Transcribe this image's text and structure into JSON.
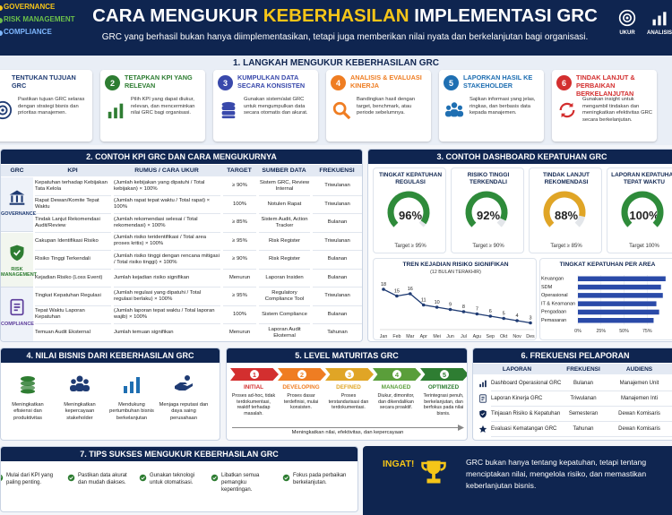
{
  "header": {
    "legend": [
      "GOVERNANCE",
      "RISK MANAGEMENT",
      "COMPLIANCE"
    ],
    "title": [
      "CARA MENGUKUR ",
      "KEBERHASILAN",
      " IMPLEMENTASI GRC"
    ],
    "subtitle": "GRC yang berhasil bukan hanya diimplementasikan, tetapi juga memberikan nilai nyata dan berkelanjutan bagi organisasi.",
    "icons": [
      "UKUR",
      "ANALISIS"
    ]
  },
  "steps": {
    "title": "1. LANGKAH MENGUKUR KEBERHASILAN GRC",
    "items": [
      {
        "title": "TENTUKAN TUJUAN GRC",
        "desc": "Pastikan tujuan GRC selaras dengan strategi bisnis dan prioritas manajemen."
      },
      {
        "number": 2,
        "title": "TETAPKAN KPI YANG RELEVAN",
        "desc": "Pilih KPI yang dapat diukur, relevan, dan mencerminkan nilai GRC bagi organisasi."
      },
      {
        "number": 3,
        "title": "KUMPULKAN DATA SECARA KONSISTEN",
        "desc": "Gunakan sistem/alat GRC untuk mengumpulkan data secara otomatis dan akurat."
      },
      {
        "number": 4,
        "title": "ANALISIS & EVALUASI KINERJA",
        "desc": "Bandingkan hasil dengan target, benchmark, atau periode sebelumnya."
      },
      {
        "number": 5,
        "title": "LAPORKAN HASIL KE STAKEHOLDER",
        "desc": "Sajikan informasi yang jelas, ringkas, dan berbasis data kepada manajemen."
      },
      {
        "number": 6,
        "title": "TINDAK LANJUT & PERBAIKAN BERKELANJUTAN",
        "desc": "Gunakan insight untuk mengambil tindakan dan meningkatkan efektivitas GRC secara berkelanjutan."
      }
    ]
  },
  "kpi_table": {
    "title": "2. CONTOH KPI GRC DAN CARA MENGUKURNYA",
    "columns": [
      "GRC",
      "KPI",
      "RUMUS / CARA UKUR",
      "TARGET",
      "SUMBER DATA",
      "FREKUENSI"
    ],
    "groups": [
      "GOVERNANCE",
      "RISK MANAGEMENT",
      "COMPLIANCE"
    ],
    "rows": [
      [
        "Kepatuhan terhadap Kebijakan Tata Kelola",
        "(Jumlah kebijakan yang dipatuhi / Total kebijakan) × 100%",
        "≥ 90%",
        "Sistem GRC, Review Internal",
        "Triwulanan"
      ],
      [
        "Rapat Dewan/Komite Tepat Waktu",
        "(Jumlah rapat tepat waktu / Total rapat) × 100%",
        "100%",
        "Notulen Rapat",
        "Triwulanan"
      ],
      [
        "Tindak Lanjut Rekomendasi Audit/Review",
        "(Jumlah rekomendasi selesai / Total rekomendasi) × 100%",
        "≥ 85%",
        "Sistem Audit, Action Tracker",
        "Bulanan"
      ],
      [
        "Cakupan Identifikasi Risiko",
        "(Jumlah risiko teridentifikasi / Total area proses kritis) × 100%",
        "≥ 95%",
        "Risk Register",
        "Triwulanan"
      ],
      [
        "Risiko Tinggi Terkendali",
        "(Jumlah risiko tinggi dengan rencana mitigasi / Total risiko tinggi) × 100%",
        "≥ 90%",
        "Risk Register",
        "Bulanan"
      ],
      [
        "Kejadian Risiko (Loss Event)",
        "Jumlah kejadian risiko signifikan",
        "Menurun",
        "Laporan Insiden",
        "Bulanan"
      ],
      [
        "Tingkat Kepatuhan Regulasi",
        "(Jumlah regulasi yang dipatuhi / Total regulasi berlaku) × 100%",
        "≥ 95%",
        "Regulatory Compliance Tool",
        "Triwulanan"
      ],
      [
        "Tepat Waktu Laporan Kepatuhan",
        "(Jumlah laporan tepat waktu / Total laporan wajib) × 100%",
        "100%",
        "Sistem Compliance",
        "Bulanan"
      ],
      [
        "Temuan Audit Eksternal",
        "Jumlah temuan signifikan",
        "Menurun",
        "Laporan Audit Eksternal",
        "Tahunan"
      ]
    ]
  },
  "dashboard": {
    "title": "3. CONTOH DASHBOARD KEPATUHAN GRC"
  },
  "chart_data": [
    {
      "type": "gauge",
      "categories": [
        "TINGKAT KEPATUHAN REGULASI",
        "RISIKO TINGGI TERKENDALI",
        "TINDAK LANJUT REKOMENDASI",
        "LAPORAN KEPATUHAN TEPAT WAKTU"
      ],
      "values": [
        96,
        92,
        88,
        100
      ],
      "value_labels": [
        "96%",
        "92%",
        "88%",
        "100%"
      ],
      "targets": [
        "Target ≥ 95%",
        "Target ≥ 90%",
        "Target ≥ 85%",
        "Target 100%"
      ],
      "colors": [
        "#2e8b3a",
        "#2e8b3a",
        "#e0a526",
        "#2e8b3a"
      ],
      "ylim": [
        0,
        100
      ]
    },
    {
      "type": "line",
      "title": "TREN KEJADIAN RISIKO SIGNIFIKAN",
      "subtitle": "(12 BULAN TERAKHIR)",
      "categories": [
        "Jan",
        "Feb",
        "Mar",
        "Apr",
        "Mei",
        "Jun",
        "Jul",
        "Agu",
        "Sep",
        "Okt",
        "Nov",
        "Des"
      ],
      "values": [
        18,
        15,
        16,
        11,
        10,
        9,
        8,
        7,
        6,
        5,
        4,
        3
      ],
      "color": "#1f3b73",
      "ylim": [
        0,
        20
      ]
    },
    {
      "type": "bar",
      "orientation": "horizontal",
      "title": "TINGKAT KEPATUHAN PER AREA",
      "categories": [
        "Keuangan",
        "SDM",
        "Operasional",
        "IT & Keamanan",
        "Pengadaan",
        "Pemasaran"
      ],
      "values": [
        95,
        90,
        92,
        85,
        88,
        82
      ],
      "color": "#2a4aa8",
      "xlim": [
        0,
        100
      ],
      "xticks": [
        {
          "value": 0,
          "label": "0%"
        },
        {
          "value": 25,
          "label": "25%"
        },
        {
          "value": 50,
          "label": "50%"
        },
        {
          "value": 75,
          "label": "75%"
        }
      ],
      "grid": true
    }
  ],
  "value": {
    "title": "4. NILAI BISNIS DARI KEBERHASILAN GRC",
    "items": [
      "Meningkatkan efisiensi dan produktivitas",
      "Meningkatkan kepercayaan stakeholder",
      "Mendukung pertumbuhan bisnis berkelanjutan",
      "Menjaga reputasi dan daya saing perusahaan"
    ]
  },
  "maturity": {
    "title": "5. LEVEL MATURITAS GRC",
    "levels": [
      {
        "number": 1,
        "name": "INITIAL",
        "desc": "Proses ad-hoc, tidak terdokumentasi, reaktif terhadap masalah."
      },
      {
        "number": 2,
        "name": "DEVELOPING",
        "desc": "Proses dasar terdefinisi, mulai konsisten."
      },
      {
        "number": 3,
        "name": "DEFINED",
        "desc": "Proses terstandarisasi dan terdokumentasi."
      },
      {
        "number": 4,
        "name": "MANAGED",
        "desc": "Diukur, dimonitor, dan dikendalikan secara proaktif."
      },
      {
        "number": 5,
        "name": "OPTIMIZED",
        "desc": "Terintegrasi penuh, berkelanjutan, dan berfokus pada nilai bisnis."
      }
    ],
    "footer": "Meningkatkan nilai, efektivitas, dan kepercayaan"
  },
  "reporting": {
    "title": "6. FREKUENSI PELAPORAN",
    "columns": [
      "LAPORAN",
      "FREKUENSI",
      "AUDIENS"
    ],
    "rows": [
      [
        "Dashboard Operasional GRC",
        "Bulanan",
        "Manajemen Unit"
      ],
      [
        "Laporan Kinerja GRC",
        "Triwulanan",
        "Manajemen Inti"
      ],
      [
        "Tinjauan Risiko & Kepatuhan",
        "Semesteran",
        "Dewan Komisaris"
      ],
      [
        "Evaluasi Kematangan GRC",
        "Tahunan",
        "Dewan Komisaris"
      ]
    ]
  },
  "tips": {
    "title": "7. TIPS SUKSES MENGUKUR KEBERHASILAN GRC",
    "items": [
      "Mulai dari KPI yang paling penting.",
      "Pastikan data akurat dan mudah diakses.",
      "Gunakan teknologi untuk otomatisasi.",
      "Libatkan semua pemangku kepentingan.",
      "Fokus pada perbaikan berkelanjutan."
    ]
  },
  "reminder": {
    "title": "INGAT!",
    "text": "GRC bukan hanya tentang kepatuhan, tetapi tentang menciptakan nilai, mengelola risiko, dan memastikan keberlanjutan bisnis."
  }
}
